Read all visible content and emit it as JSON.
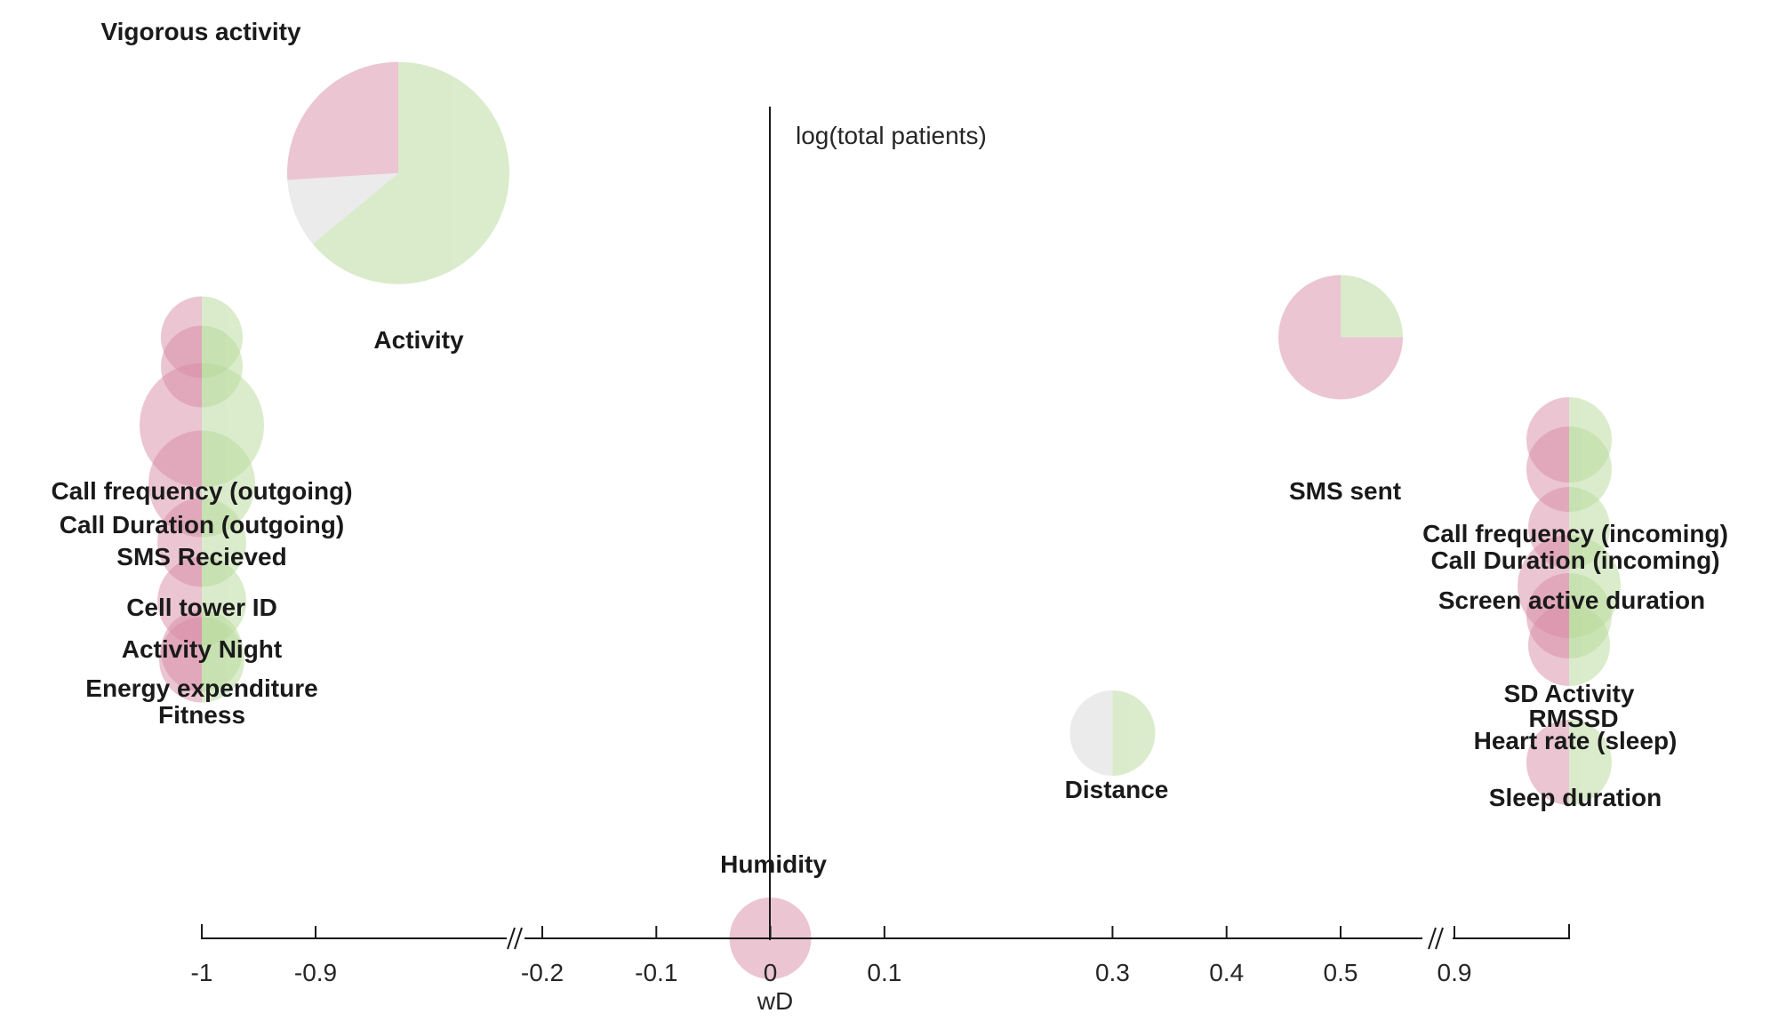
{
  "chart_data": {
    "type": "bubble-pie",
    "xlabel": "wD",
    "ylabel": "log(total patients)",
    "x_ticks": [
      "-1",
      "-0.9",
      "-0.2",
      "-0.1",
      "0",
      "0.1",
      "0.3",
      "0.4",
      "0.5",
      "0.9"
    ],
    "x_breaks": [
      [
        -0.9,
        -0.2
      ],
      [
        0.5,
        0.9
      ]
    ],
    "colors": {
      "positive": "#b7d99a",
      "neutral": "#d9d9d9",
      "negative": "#d98ca6"
    },
    "bubbles": [
      {
        "label": "Vigorous activity",
        "wd": -1.0,
        "log_patients": 0.98,
        "green": 0.5,
        "gray": 0.0,
        "red": 0.5
      },
      {
        "label": "Activity",
        "wd": -0.81,
        "log_patients": 2.61,
        "green": 0.64,
        "gray": 0.1,
        "red": 0.26
      },
      {
        "label": "Call frequency (outgoing)",
        "wd": -1.0,
        "log_patients": 2.05,
        "green": 0.5,
        "gray": 0.0,
        "red": 0.5
      },
      {
        "label": "Call Duration (outgoing)",
        "wd": -1.0,
        "log_patients": 1.95,
        "green": 0.5,
        "gray": 0.0,
        "red": 0.5
      },
      {
        "label": "SMS Recieved",
        "wd": -1.0,
        "log_patients": 1.75,
        "green": 0.5,
        "gray": 0.0,
        "red": 0.5
      },
      {
        "label": "Cell tower ID",
        "wd": -1.0,
        "log_patients": 1.55,
        "green": 0.5,
        "gray": 0.0,
        "red": 0.5
      },
      {
        "label": "Activity Night",
        "wd": -1.0,
        "log_patients": 1.35,
        "green": 0.5,
        "gray": 0.0,
        "red": 0.5
      },
      {
        "label": "Energy expenditure",
        "wd": -1.0,
        "log_patients": 1.15,
        "green": 0.5,
        "gray": 0.0,
        "red": 0.5
      },
      {
        "label": "Fitness",
        "wd": -1.0,
        "log_patients": 0.95,
        "green": 0.5,
        "gray": 0.0,
        "red": 0.5
      },
      {
        "label": "SMS sent",
        "wd": 0.5,
        "log_patients": 2.05,
        "green": 0.25,
        "gray": 0.0,
        "red": 0.75
      },
      {
        "label": "Call frequency (incoming)",
        "wd": 1.0,
        "log_patients": 1.7,
        "green": 0.5,
        "gray": 0.0,
        "red": 0.5
      },
      {
        "label": "Call Duration (incoming)",
        "wd": 1.0,
        "log_patients": 1.6,
        "green": 0.5,
        "gray": 0.0,
        "red": 0.5
      },
      {
        "label": "Screen active duration",
        "wd": 1.0,
        "log_patients": 1.4,
        "green": 0.5,
        "gray": 0.0,
        "red": 0.5
      },
      {
        "label": "SD Activity",
        "wd": 1.0,
        "log_patients": 1.2,
        "green": 0.5,
        "gray": 0.0,
        "red": 0.5
      },
      {
        "label": "RMSSD",
        "wd": 1.0,
        "log_patients": 1.1,
        "green": 0.5,
        "gray": 0.0,
        "red": 0.5
      },
      {
        "label": "Heart rate (sleep)",
        "wd": 1.0,
        "log_patients": 1.0,
        "green": 0.5,
        "gray": 0.0,
        "red": 0.5
      },
      {
        "label": "Sleep duration",
        "wd": 1.0,
        "log_patients": 0.6,
        "green": 0.5,
        "gray": 0.0,
        "red": 0.5
      },
      {
        "label": "Distance",
        "wd": 0.3,
        "log_patients": 0.7,
        "green": 0.5,
        "gray": 0.5,
        "red": 0.0
      },
      {
        "label": "Humidity",
        "wd": 0.0,
        "log_patients": 0.0,
        "green": 0.0,
        "gray": 0.0,
        "red": 1.0
      }
    ]
  }
}
